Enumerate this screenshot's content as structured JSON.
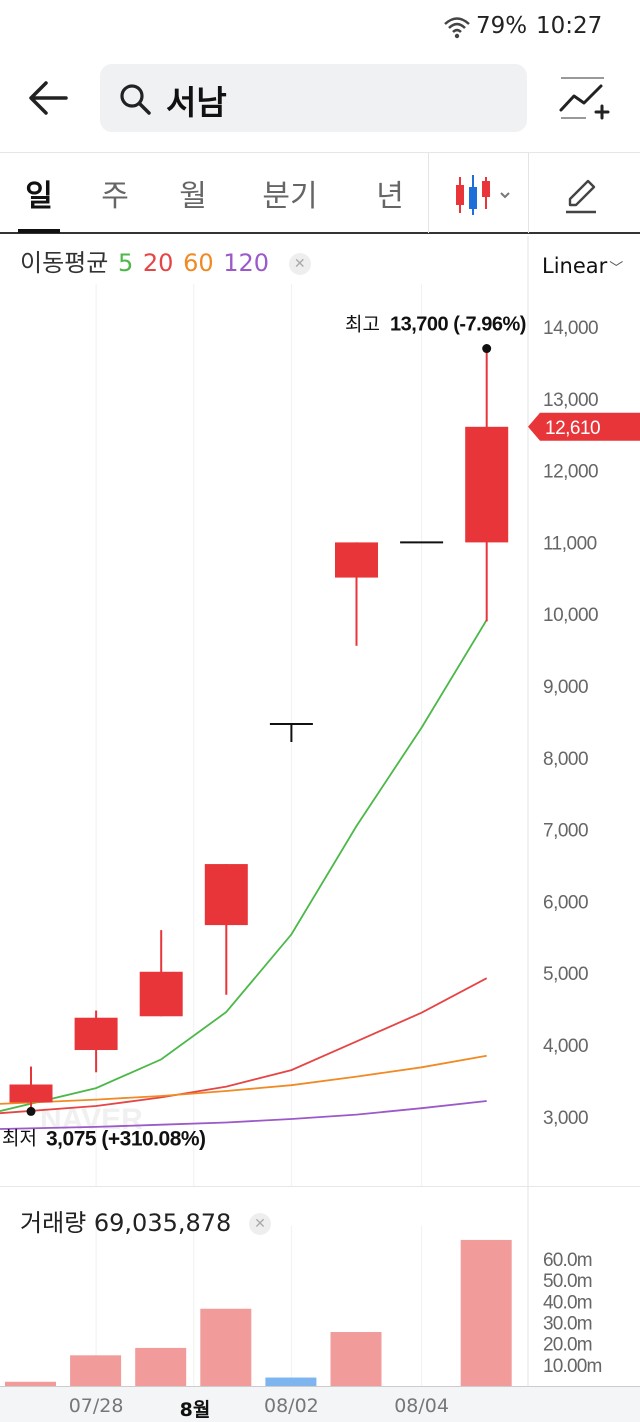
{
  "status": {
    "battery": "79%",
    "time": "10:27",
    "wifi_icon": "wifi-icon"
  },
  "search": {
    "query": "서남",
    "search_icon": "search-icon",
    "back_icon": "back-arrow-icon",
    "compare_icon": "chart-compare-icon"
  },
  "tabs": [
    {
      "label": "일",
      "active": true
    },
    {
      "label": "주",
      "active": false
    },
    {
      "label": "월",
      "active": false
    },
    {
      "label": "분기",
      "active": false
    },
    {
      "label": "년",
      "active": false
    }
  ],
  "toolbar": {
    "candle_icon": "candlestick-icon",
    "dropdown_icon": "chevron-down-icon",
    "edit_icon": "pencil-icon"
  },
  "ma_legend": {
    "title": "이동평균",
    "periods": [
      {
        "label": "5",
        "color": "#4cb848"
      },
      {
        "label": "20",
        "color": "#e64545"
      },
      {
        "label": "60",
        "color": "#f08a24"
      },
      {
        "label": "120",
        "color": "#9b59c9"
      }
    ],
    "close_icon": "close-icon"
  },
  "scale": {
    "label": "Linear"
  },
  "chart_data": {
    "type": "candlestick",
    "y_axis": {
      "min": 3000,
      "max": 14000,
      "ticks": [
        "14,000",
        "13,000",
        "12,000",
        "11,000",
        "10,000",
        "9,000",
        "8,000",
        "7,000",
        "6,000",
        "5,000",
        "4,000",
        "3,000"
      ]
    },
    "candles": [
      {
        "open": 3200,
        "close": 3450,
        "high": 3700,
        "low": 3075,
        "color": "#e8353a"
      },
      {
        "open": 3930,
        "close": 4380,
        "high": 4480,
        "low": 3620,
        "color": "#e8353a"
      },
      {
        "open": 4400,
        "close": 5020,
        "high": 5600,
        "low": 4400,
        "color": "#e8353a"
      },
      {
        "open": 5670,
        "close": 6520,
        "high": 6520,
        "low": 4700,
        "color": "#e8353a"
      },
      {
        "open": 8470,
        "close": 8470,
        "high": 8470,
        "low": 8220,
        "color": "#111111"
      },
      {
        "open": 10510,
        "close": 11000,
        "high": 11000,
        "low": 9560,
        "color": "#e8353a"
      },
      {
        "open": 11000,
        "close": 11000,
        "high": 11000,
        "low": 11000,
        "color": "#111111"
      },
      {
        "open": 11000,
        "close": 12610,
        "high": 13700,
        "low": 9900,
        "color": "#e8353a"
      }
    ],
    "moving_averages": [
      {
        "name": "5",
        "color": "#4cb848",
        "values": [
          3080,
          3400,
          3800,
          4460,
          5540,
          7050,
          8420,
          9920
        ]
      },
      {
        "name": "20",
        "color": "#e64545",
        "values": [
          3050,
          3150,
          3270,
          3420,
          3650,
          4050,
          4450,
          4930
        ]
      },
      {
        "name": "60",
        "color": "#f08a24",
        "values": [
          3180,
          3240,
          3290,
          3360,
          3440,
          3560,
          3690,
          3850
        ]
      },
      {
        "name": "120",
        "color": "#9b59c9",
        "values": [
          2830,
          2860,
          2890,
          2920,
          2970,
          3030,
          3120,
          3220
        ]
      }
    ],
    "high_annotation": {
      "label": "최고",
      "value_text": "13,700 (-7.96%)",
      "value": 13700
    },
    "low_annotation": {
      "label": "최저",
      "value_text": "3,075 (+310.08%)",
      "value": 3075
    },
    "current_price": {
      "text": "12,610",
      "value": 12610,
      "color": "#e8353a"
    },
    "volume": {
      "label": "거래량",
      "value_text": "69,035,878",
      "y_ticks": [
        "60.0m",
        "50.0m",
        "40.0m",
        "30.0m",
        "20.0m",
        "10.00m"
      ],
      "y_max": 70,
      "values": [
        2.0,
        14.5,
        18.0,
        36.5,
        4.0,
        25.5,
        0,
        69.0
      ],
      "colors": [
        "#f29b9b",
        "#f29b9b",
        "#f29b9b",
        "#f29b9b",
        "#7fb5ee",
        "#f29b9b",
        "#f29b9b",
        "#f29b9b"
      ]
    },
    "x_ticks": [
      {
        "label": "07/28",
        "bold": false,
        "index": 1
      },
      {
        "label": "8월",
        "bold": true,
        "index": 2.5
      },
      {
        "label": "08/02",
        "bold": false,
        "index": 4
      },
      {
        "label": "08/04",
        "bold": false,
        "index": 6
      }
    ],
    "watermark": "NAVER"
  }
}
